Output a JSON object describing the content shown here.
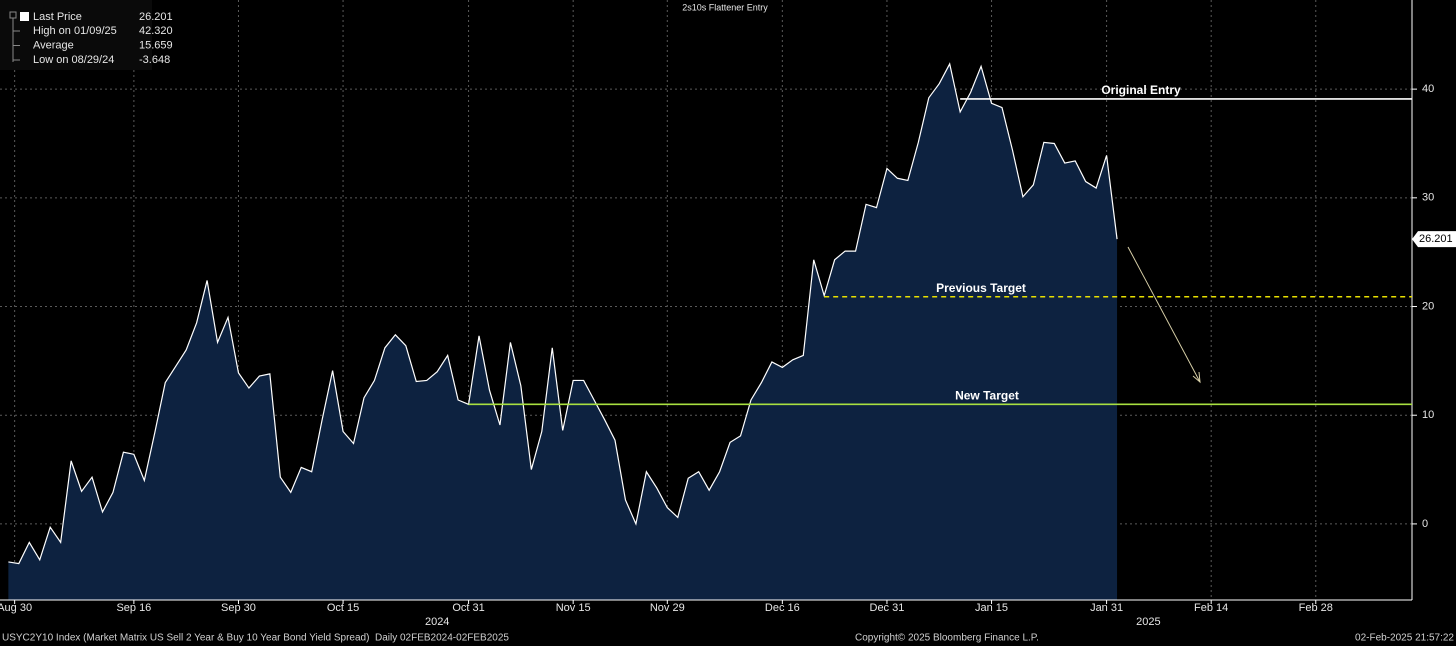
{
  "chart_data": {
    "type": "area",
    "title": "2s10s Flattener Entry",
    "series": [
      {
        "name": "Last Price",
        "color": "#ffffff",
        "fill": "#0d2240",
        "values": [
          -3.5,
          -3.648,
          -1.7,
          -3.3,
          -0.3,
          -1.7,
          5.8,
          3.0,
          4.3,
          1.1,
          2.9,
          6.6,
          6.4,
          4.0,
          8.4,
          13.0,
          14.5,
          16.0,
          18.5,
          22.4,
          16.7,
          19.0,
          13.9,
          12.5,
          13.6,
          13.8,
          4.3,
          2.9,
          5.2,
          4.8,
          9.6,
          14.1,
          8.5,
          7.4,
          11.6,
          13.2,
          16.2,
          17.4,
          16.4,
          13.1,
          13.2,
          14.0,
          15.5,
          11.4,
          11.0,
          17.3,
          12.3,
          9.1,
          16.7,
          12.7,
          5.0,
          8.5,
          16.2,
          8.6,
          13.2,
          13.2,
          11.4,
          9.6,
          7.7,
          2.2,
          0.0,
          4.8,
          3.3,
          1.5,
          0.6,
          4.2,
          4.8,
          3.1,
          4.8,
          7.5,
          8.1,
          11.4,
          13.0,
          14.9,
          14.4,
          15.1,
          15.5,
          24.3,
          21.0,
          24.3,
          25.1,
          25.1,
          29.4,
          29.1,
          32.7,
          31.8,
          31.6,
          35.1,
          39.2,
          40.5,
          42.32,
          37.9,
          39.7,
          42.1,
          38.7,
          38.3,
          34.4,
          30.1,
          31.2,
          35.1,
          35.0,
          33.2,
          33.4,
          31.5,
          30.9,
          33.9,
          26.201
        ]
      }
    ],
    "stats": [
      {
        "label": "High on 01/09/25",
        "value": 42.32,
        "value_label": "42.320"
      },
      {
        "label": "Average",
        "value": 15.659
      },
      {
        "label": "Low on 08/29/24",
        "value": -3.648
      }
    ],
    "xlim": [
      -0.8,
      134.2
    ],
    "xticks": [
      {
        "value": 0.6,
        "label": "Aug 30"
      },
      {
        "value": 12,
        "label": "Sep 16"
      },
      {
        "value": 22,
        "label": "Sep 30"
      },
      {
        "value": 32,
        "label": "Oct 15"
      },
      {
        "value": 44,
        "label": "Oct 31"
      },
      {
        "value": 54,
        "label": "Nov 15"
      },
      {
        "value": 63,
        "label": "Nov 29"
      },
      {
        "value": 74,
        "label": "Dec 16"
      },
      {
        "value": 84,
        "label": "Dec 31"
      },
      {
        "value": 94,
        "label": "Jan 15"
      },
      {
        "value": 105,
        "label": "Jan 31"
      },
      {
        "value": 115,
        "label": "Feb 14"
      },
      {
        "value": 125,
        "label": "Feb 28"
      }
    ],
    "year_labels": [
      {
        "value": 41,
        "label": "2024"
      },
      {
        "value": 109,
        "label": "2025"
      }
    ],
    "ylim": [
      -7.0,
      48.2
    ],
    "yticks": [
      0,
      10,
      20,
      30,
      40
    ],
    "grid": true,
    "annotations": [
      {
        "text": "Original Entry",
        "value": 39.1,
        "start": 91,
        "color": "#ffffff",
        "style": "solid"
      },
      {
        "text": "Previous Target",
        "value": 20.9,
        "start": 78,
        "color": "#e8e000",
        "style": "dashed"
      },
      {
        "text": "New Target",
        "value": 11.0,
        "start": 44,
        "color": "#a8e040",
        "style": "solid"
      }
    ],
    "footer": {
      "left": "USYC2Y10 Index (Market Matrix US Sell 2 Year & Buy 10 Year Bond Yield Spread)  Daily 02FEB2024-02FEB2025",
      "center": "Copyright© 2025 Bloomberg Finance L.P.",
      "right": "02-Feb-2025 21:57:22"
    }
  }
}
